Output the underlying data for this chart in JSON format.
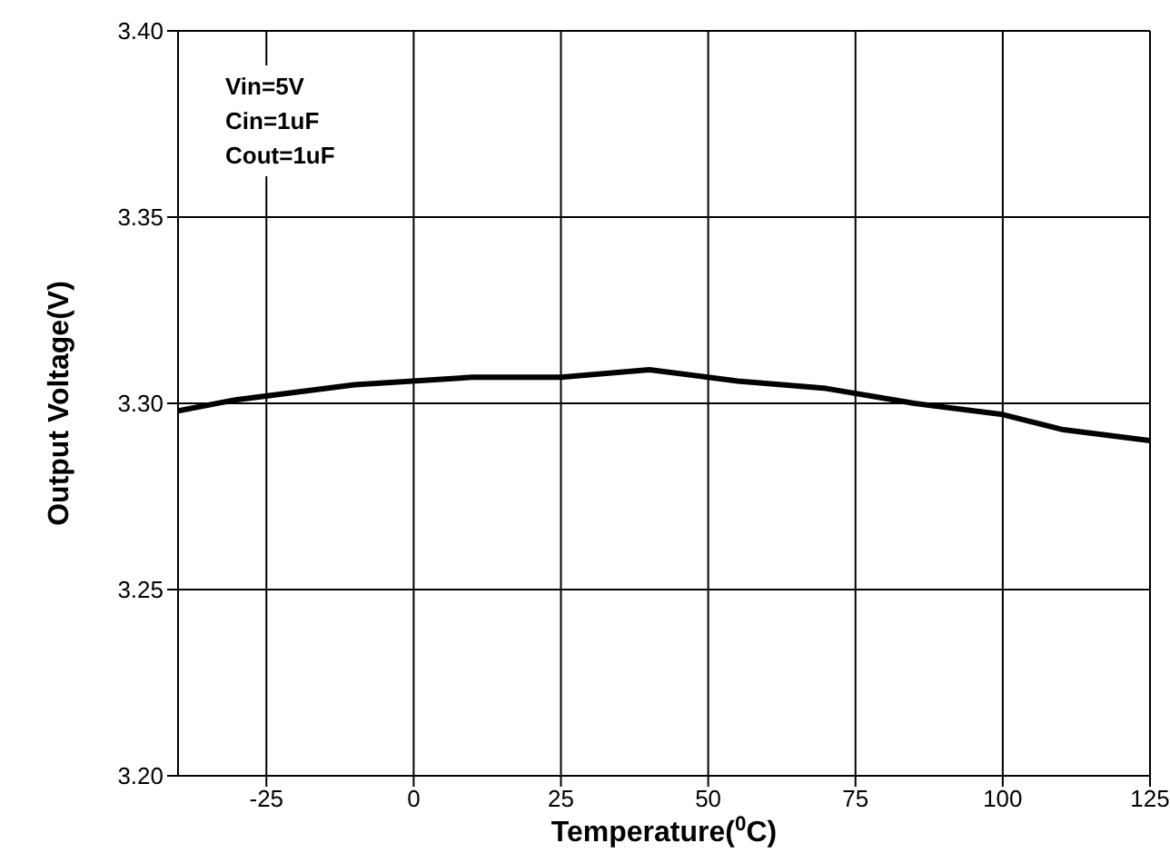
{
  "chart_data": {
    "type": "line",
    "xlabel": "Temperature($^{0}$C)",
    "ylabel": "Output Voltage(V)",
    "x": [
      -40,
      -30,
      -10,
      10,
      25,
      40,
      55,
      70,
      85,
      100,
      110,
      125
    ],
    "series": [
      {
        "color": "#000000",
        "values": [
          3.298,
          3.301,
          3.305,
          3.307,
          3.307,
          3.309,
          3.306,
          3.304,
          3.3,
          3.297,
          3.293,
          3.29
        ]
      }
    ],
    "xlim": [
      -40,
      125
    ],
    "xticks": [
      -25,
      0,
      25,
      50,
      75,
      100,
      125
    ],
    "ylim": [
      3.2,
      3.4
    ],
    "yticks": [
      {
        "value": 3.2,
        "label": "3.20"
      },
      {
        "value": 3.25,
        "label": "3.25"
      },
      {
        "value": 3.3,
        "label": "3.30"
      },
      {
        "value": 3.35,
        "label": "3.35"
      },
      {
        "value": 3.4,
        "label": "3.40"
      }
    ],
    "grid": true,
    "marker": "none",
    "line_style": "solid",
    "annotations": [
      "Vin=5V",
      "Cin=1uF",
      "Cout=1uF"
    ]
  }
}
